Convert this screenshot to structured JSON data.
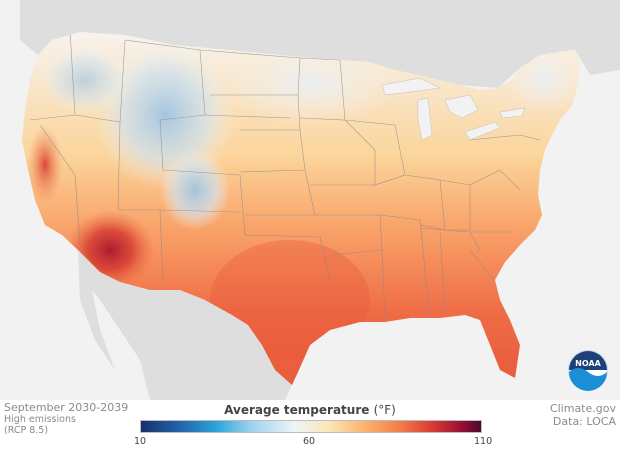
{
  "map": {
    "period": "September 2030-2039",
    "scenario_line1": "High emissions",
    "scenario_line2": "(RCP 8.5)",
    "source": "Climate.gov",
    "data_source": "Data: LOCA",
    "logo_text": "NOAA"
  },
  "legend": {
    "title": "Average temperature",
    "unit": "(°F)",
    "min_label": "10",
    "mid_label": "60",
    "max_label": "110",
    "min": 10,
    "mid": 60,
    "max": 110
  },
  "colors": {
    "ocean": "#f2f2f2",
    "neighbor_land": "#dedede",
    "cold": "#2267ad",
    "neutral": "#ecf4f8",
    "warm": "#fbb26c",
    "hot": "#d83932",
    "hottest": "#4a0a2d"
  }
}
